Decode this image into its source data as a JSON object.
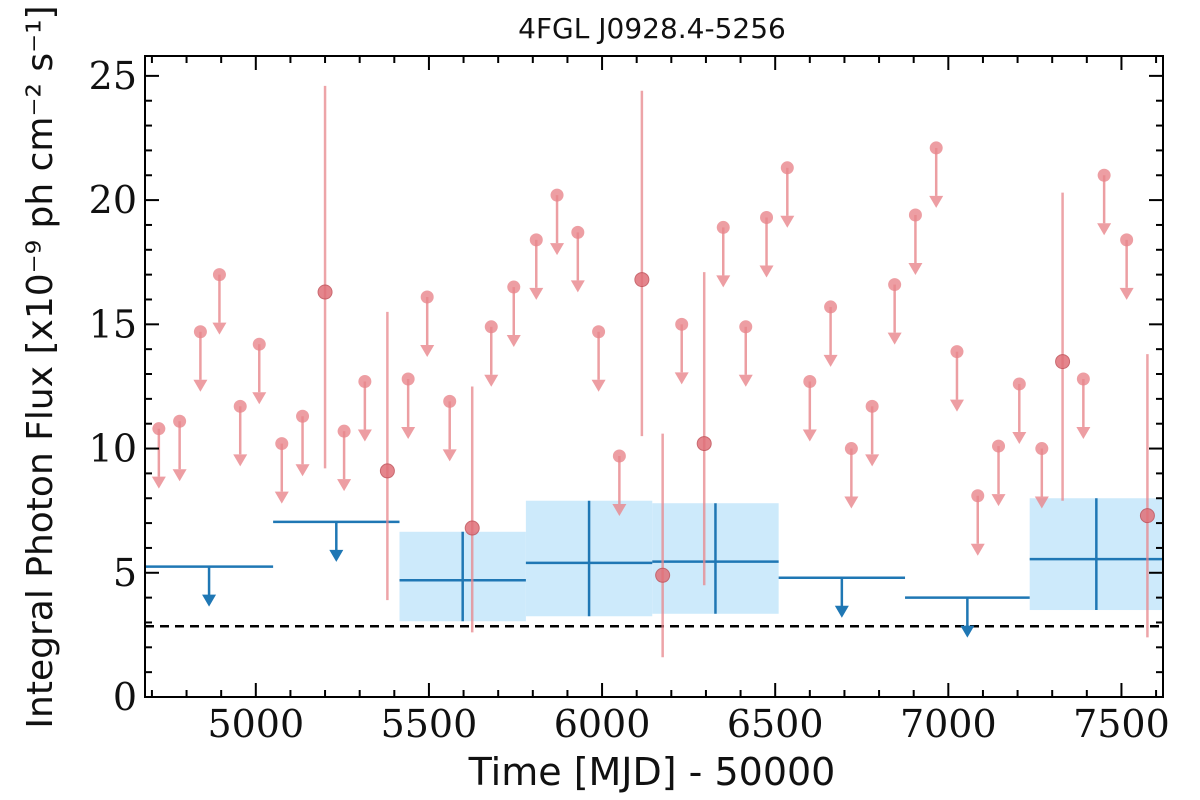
{
  "chart_data": {
    "type": "scatter",
    "title": "4FGL J0928.4-5256",
    "xlabel": "Time [MJD] - 50000",
    "ylabel": "Integral Photon Flux [x10⁻⁹ ph cm⁻² s⁻¹]",
    "xlim": [
      4680,
      7620
    ],
    "ylim": [
      0,
      25.8
    ],
    "x_ticks": [
      5000,
      5500,
      6000,
      6500,
      7000,
      7500
    ],
    "y_ticks": [
      0,
      5,
      10,
      15,
      20,
      25
    ],
    "reference_line": {
      "y": 2.85,
      "style": "dashed",
      "color": "#000000"
    },
    "colors": {
      "short_bins": "#e8868c",
      "long_bins": "#1f77b4",
      "long_bins_band": "#cdeafb",
      "reference": "#000000"
    },
    "series": [
      {
        "color": "#e8868c",
        "upper_limits": [
          {
            "x": 4720,
            "y": 10.8
          },
          {
            "x": 4780,
            "y": 11.1
          },
          {
            "x": 4840,
            "y": 14.7
          },
          {
            "x": 4895,
            "y": 17.0
          },
          {
            "x": 4955,
            "y": 11.7
          },
          {
            "x": 5010,
            "y": 14.2
          },
          {
            "x": 5075,
            "y": 10.2
          },
          {
            "x": 5135,
            "y": 11.3
          },
          {
            "x": 5255,
            "y": 10.7
          },
          {
            "x": 5315,
            "y": 12.7
          },
          {
            "x": 5440,
            "y": 12.8
          },
          {
            "x": 5495,
            "y": 16.1
          },
          {
            "x": 5560,
            "y": 11.9
          },
          {
            "x": 5680,
            "y": 14.9
          },
          {
            "x": 5745,
            "y": 16.5
          },
          {
            "x": 5810,
            "y": 18.4
          },
          {
            "x": 5870,
            "y": 20.2
          },
          {
            "x": 5930,
            "y": 18.7
          },
          {
            "x": 5990,
            "y": 14.7
          },
          {
            "x": 6050,
            "y": 9.7
          },
          {
            "x": 6230,
            "y": 15.0
          },
          {
            "x": 6350,
            "y": 18.9
          },
          {
            "x": 6415,
            "y": 14.9
          },
          {
            "x": 6475,
            "y": 19.3
          },
          {
            "x": 6535,
            "y": 21.3
          },
          {
            "x": 6600,
            "y": 12.7
          },
          {
            "x": 6660,
            "y": 15.7
          },
          {
            "x": 6720,
            "y": 10.0
          },
          {
            "x": 6780,
            "y": 11.7
          },
          {
            "x": 6845,
            "y": 16.6
          },
          {
            "x": 6905,
            "y": 19.4
          },
          {
            "x": 6965,
            "y": 22.1
          },
          {
            "x": 7025,
            "y": 13.9
          },
          {
            "x": 7085,
            "y": 8.1
          },
          {
            "x": 7145,
            "y": 10.1
          },
          {
            "x": 7205,
            "y": 12.6
          },
          {
            "x": 7270,
            "y": 10.0
          },
          {
            "x": 7390,
            "y": 12.8
          },
          {
            "x": 7450,
            "y": 21.0
          },
          {
            "x": 7515,
            "y": 18.4
          }
        ],
        "detections": [
          {
            "x": 5200,
            "y": 16.3,
            "ylo": 9.2,
            "yhi": 24.6
          },
          {
            "x": 5380,
            "y": 9.1,
            "ylo": 3.9,
            "yhi": 15.5
          },
          {
            "x": 5625,
            "y": 6.8,
            "ylo": 2.6,
            "yhi": 12.5
          },
          {
            "x": 6115,
            "y": 16.8,
            "ylo": 10.5,
            "yhi": 24.4
          },
          {
            "x": 6175,
            "y": 4.9,
            "ylo": 1.6,
            "yhi": 10.6
          },
          {
            "x": 6295,
            "y": 10.2,
            "ylo": 4.5,
            "yhi": 17.1
          },
          {
            "x": 7330,
            "y": 13.5,
            "ylo": 7.9,
            "yhi": 20.3
          },
          {
            "x": 7575,
            "y": 7.3,
            "ylo": 2.4,
            "yhi": 13.8
          }
        ]
      },
      {
        "color": "#1f77b4",
        "upper_limits": [
          {
            "x0": 4680,
            "x1": 5050,
            "y": 5.25
          },
          {
            "x0": 5050,
            "x1": 5415,
            "y": 7.05
          },
          {
            "x0": 6510,
            "x1": 6875,
            "y": 4.8
          },
          {
            "x0": 6875,
            "x1": 7235,
            "y": 4.0
          }
        ],
        "detections": [
          {
            "x0": 5415,
            "x1": 5780,
            "y": 4.7,
            "ylo": 3.05,
            "yhi": 6.65
          },
          {
            "x0": 5780,
            "x1": 6145,
            "y": 5.4,
            "ylo": 3.25,
            "yhi": 7.9
          },
          {
            "x0": 6145,
            "x1": 6510,
            "y": 5.45,
            "ylo": 3.35,
            "yhi": 7.8
          },
          {
            "x0": 7235,
            "x1": 7620,
            "y": 5.55,
            "ylo": 3.5,
            "yhi": 8.0
          }
        ]
      }
    ]
  }
}
